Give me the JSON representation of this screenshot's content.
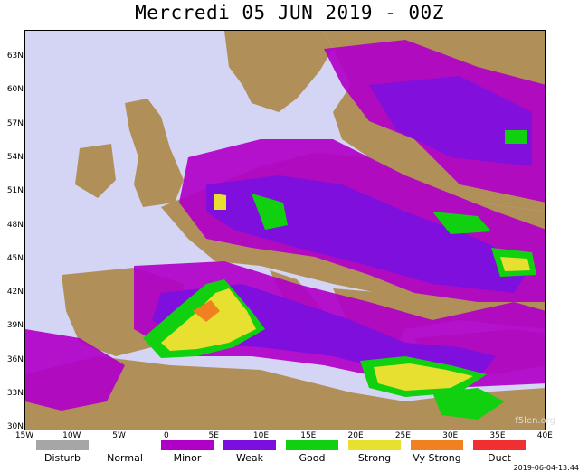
{
  "title": "Mercredi 05 JUN 2019 - 00Z",
  "credit": "f5len.org",
  "timestamp": "2019-06-04-13:44",
  "lat_labels": [
    "63N",
    "60N",
    "57N",
    "54N",
    "51N",
    "48N",
    "45N",
    "42N",
    "39N",
    "36N",
    "33N",
    "30N"
  ],
  "lon_labels": [
    "15W",
    "10W",
    "5W",
    "0",
    "5E",
    "10E",
    "15E",
    "20E",
    "25E",
    "30E",
    "35E",
    "40E"
  ],
  "legend": [
    {
      "label": "Disturb",
      "color": "#a6a6a6"
    },
    {
      "label": "Normal",
      "color": "#ffffff"
    },
    {
      "label": "Minor",
      "color": "#b000c8"
    },
    {
      "label": "Weak",
      "color": "#7a10e0"
    },
    {
      "label": "Good",
      "color": "#10d010"
    },
    {
      "label": "Strong",
      "color": "#e8e030"
    },
    {
      "label": "Vy Strong",
      "color": "#f08020"
    },
    {
      "label": "Duct",
      "color": "#f03030"
    }
  ],
  "colors": {
    "sea": "#d4d4f4",
    "land": "#b09058",
    "minor": "#b000c8",
    "weak": "#7a10e0",
    "good": "#10d010",
    "strong": "#e8e030",
    "vystrong": "#f08020"
  }
}
